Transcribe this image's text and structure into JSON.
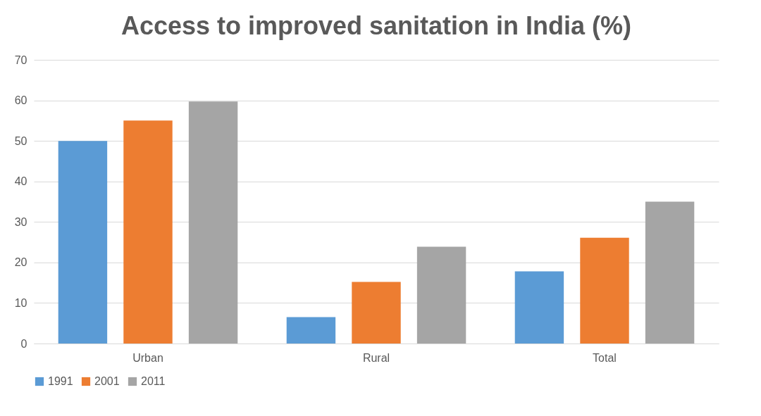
{
  "chart_data": {
    "type": "bar",
    "title": "Access to improved sanitation in India (%)",
    "categories": [
      "Urban",
      "Rural",
      "Total"
    ],
    "series": [
      {
        "name": "1991",
        "color": "#5b9bd5",
        "values": [
          50.0,
          6.5,
          17.8
        ]
      },
      {
        "name": "2001",
        "color": "#ed7d31",
        "values": [
          55.0,
          15.2,
          26.1
        ]
      },
      {
        "name": "2011",
        "color": "#a5a5a5",
        "values": [
          59.7,
          23.9,
          35.0
        ]
      }
    ],
    "ylim": [
      0,
      70
    ],
    "yticks": [
      0,
      10,
      20,
      30,
      40,
      50,
      60,
      70
    ],
    "grid": "y",
    "legend": "bottom"
  }
}
